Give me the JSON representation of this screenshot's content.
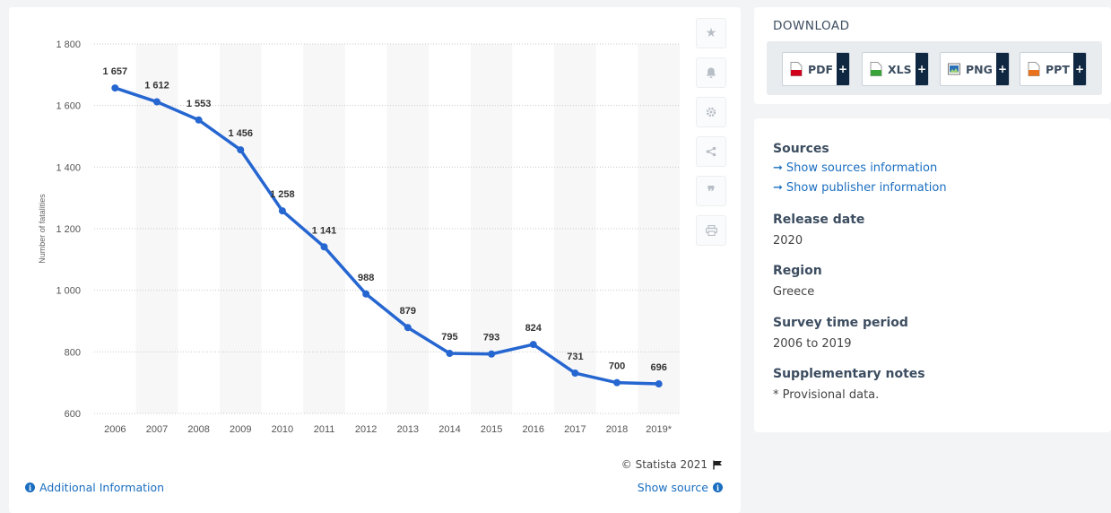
{
  "chart_data": {
    "type": "line",
    "title": "",
    "xlabel": "",
    "ylabel": "Number of fatalities",
    "categories": [
      "2006",
      "2007",
      "2008",
      "2009",
      "2010",
      "2011",
      "2012",
      "2013",
      "2014",
      "2015",
      "2016",
      "2017",
      "2018",
      "2019*"
    ],
    "series": [
      {
        "values": [
          1657,
          1612,
          1553,
          1456,
          1258,
          1141,
          988,
          879,
          795,
          793,
          824,
          731,
          700,
          696
        ],
        "labels": [
          "1 657",
          "1 612",
          "1 553",
          "1 456",
          "1 258",
          "1 141",
          "988",
          "879",
          "795",
          "793",
          "824",
          "731",
          "700",
          "696"
        ]
      }
    ],
    "ylim": [
      600,
      1800
    ],
    "yticks": [
      600,
      800,
      1000,
      1200,
      1400,
      1600,
      1800
    ],
    "ytick_labels": [
      "600",
      "800",
      "1 000",
      "1 200",
      "1 400",
      "1 600",
      "1 800"
    ],
    "grid": true,
    "line_color": "#2666d1"
  },
  "copyright": "© Statista 2021",
  "additional_info": "Additional Information",
  "show_source": "Show source",
  "tools": [
    "star-icon",
    "bell-icon",
    "gear-icon",
    "share-icon",
    "quote-icon",
    "print-icon"
  ],
  "download": {
    "title": "DOWNLOAD",
    "buttons": [
      {
        "label": "PDF",
        "plus": "+",
        "color": "#d0021b"
      },
      {
        "label": "XLS",
        "plus": "+",
        "color": "#3aa33a"
      },
      {
        "label": "PNG",
        "plus": "+",
        "color": "#2b6fb6"
      },
      {
        "label": "PPT",
        "plus": "+",
        "color": "#e8731c"
      }
    ]
  },
  "details": {
    "sources_heading": "Sources",
    "show_sources": "Show sources information",
    "show_publisher": "Show publisher information",
    "release_heading": "Release date",
    "release_value": "2020",
    "region_heading": "Region",
    "region_value": "Greece",
    "survey_heading": "Survey time period",
    "survey_value": "2006 to 2019",
    "notes_heading": "Supplementary notes",
    "notes_value": "* Provisional data."
  }
}
